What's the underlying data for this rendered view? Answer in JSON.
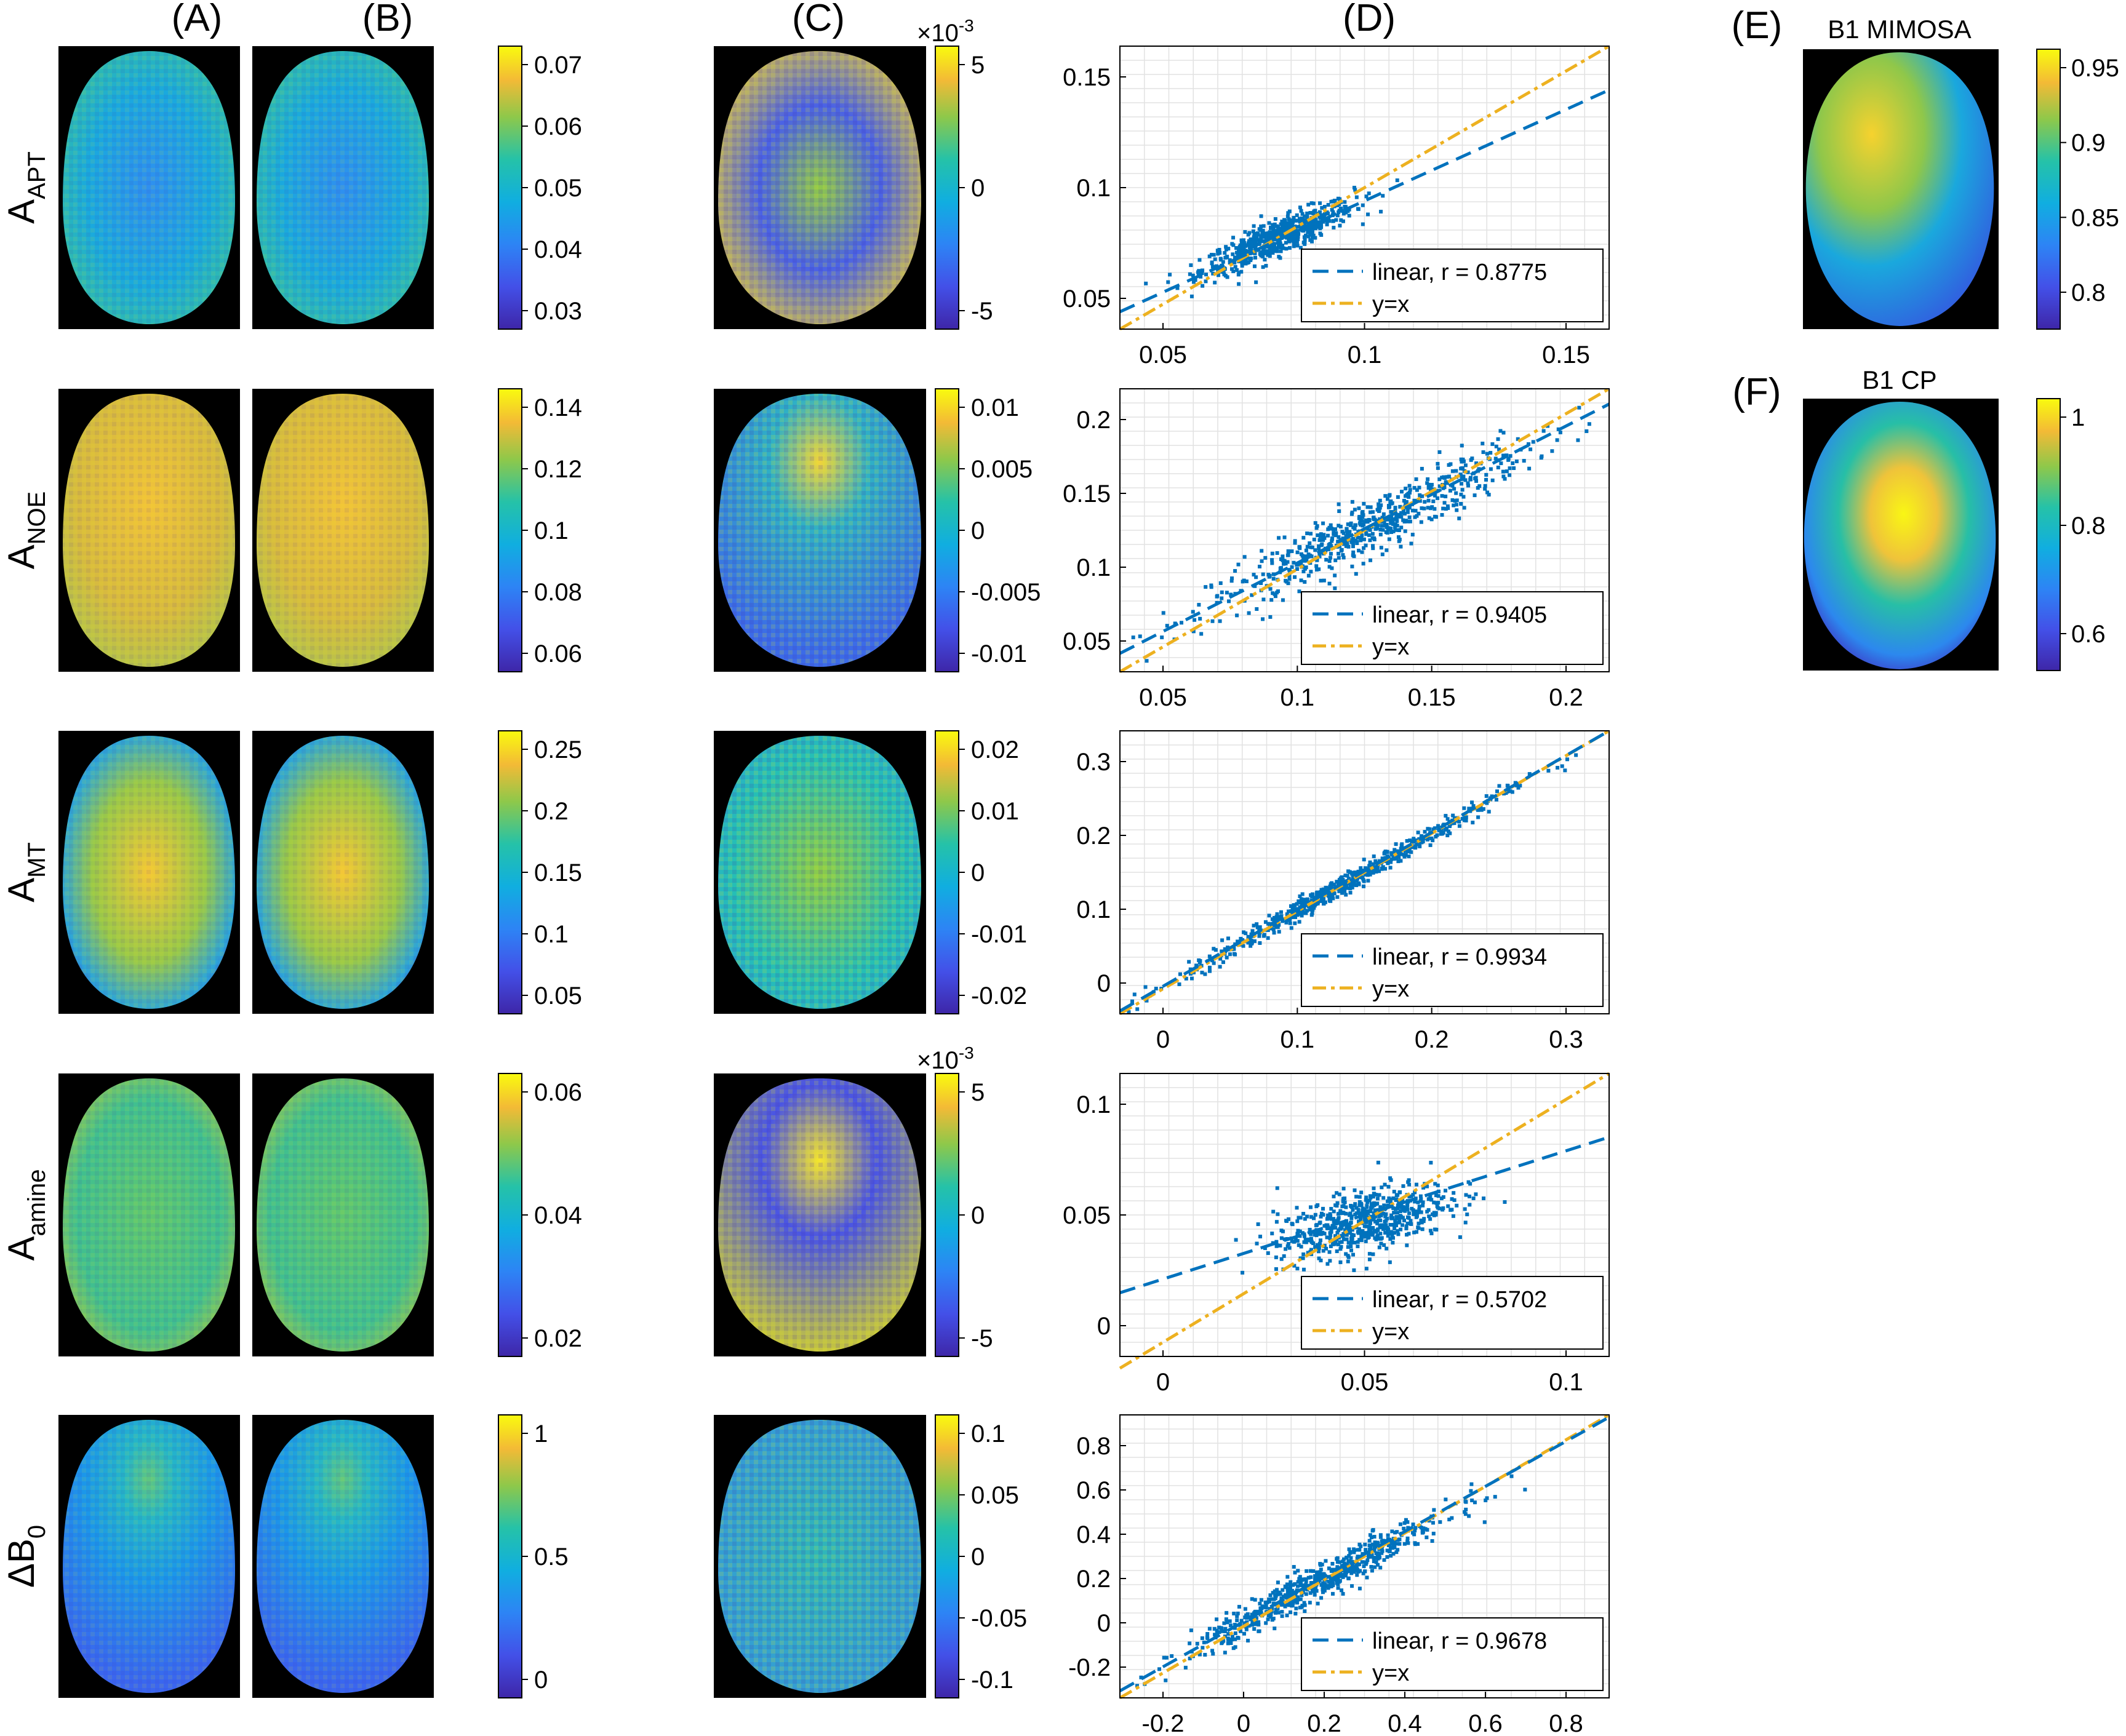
{
  "column_labels": {
    "a": "(A)",
    "b": "(B)",
    "c": "(C)",
    "d": "(D)",
    "e": "(E)",
    "f": "(F)"
  },
  "rows": [
    {
      "main": "A",
      "sub": "APT",
      "cbar_ab": [
        "0.07",
        "0.06",
        "0.05",
        "0.04",
        "0.03"
      ],
      "cbar_c": [
        "5",
        "0",
        "-5"
      ],
      "c_exponent_base": "×10",
      "c_exponent": "-3",
      "scatter": {
        "r_label": "linear, r = 0.8775",
        "yx_label": "y=x",
        "xticks": [
          "0.05",
          "0.1",
          "0.15"
        ],
        "yticks": [
          "0.15",
          "0.1",
          "0.05"
        ]
      }
    },
    {
      "main": "A",
      "sub": "NOE",
      "cbar_ab": [
        "0.14",
        "0.12",
        "0.1",
        "0.08",
        "0.06"
      ],
      "cbar_c": [
        "0.01",
        "0.005",
        "0",
        "-0.005",
        "-0.01"
      ],
      "scatter": {
        "r_label": "linear, r = 0.9405",
        "yx_label": "y=x",
        "xticks": [
          "0.05",
          "0.1",
          "0.15",
          "0.2"
        ],
        "yticks": [
          "0.2",
          "0.15",
          "0.1",
          "0.05"
        ]
      }
    },
    {
      "main": "A",
      "sub": "MT",
      "cbar_ab": [
        "0.25",
        "0.2",
        "0.15",
        "0.1",
        "0.05"
      ],
      "cbar_c": [
        "0.02",
        "0.01",
        "0",
        "-0.01",
        "-0.02"
      ],
      "scatter": {
        "r_label": "linear, r = 0.9934",
        "yx_label": "y=x",
        "xticks": [
          "0",
          "0.1",
          "0.2",
          "0.3"
        ],
        "yticks": [
          "0.3",
          "0.2",
          "0.1",
          "0"
        ]
      }
    },
    {
      "main": "A",
      "sub": "amine",
      "cbar_ab": [
        "0.06",
        "0.04",
        "0.02"
      ],
      "cbar_c": [
        "5",
        "0",
        "-5"
      ],
      "c_exponent_base": "×10",
      "c_exponent": "-3",
      "scatter": {
        "r_label": "linear, r = 0.5702",
        "yx_label": "y=x",
        "xticks": [
          "0",
          "0.05",
          "0.1"
        ],
        "yticks": [
          "0.1",
          "0.05",
          "0"
        ]
      }
    },
    {
      "main": "ΔB",
      "sub": "0",
      "cbar_ab": [
        "1",
        "0.5",
        "0"
      ],
      "cbar_c": [
        "0.1",
        "0.05",
        "0",
        "-0.05",
        "-0.1"
      ],
      "scatter": {
        "r_label": "linear, r = 0.9678",
        "yx_label": "y=x",
        "xticks": [
          "-0.2",
          "0",
          "0.2",
          "0.4",
          "0.6",
          "0.8"
        ],
        "yticks": [
          "0.8",
          "0.6",
          "0.4",
          "0.2",
          "0",
          "-0.2"
        ]
      }
    }
  ],
  "b1_mimosa": {
    "title": "B1 MIMOSA",
    "ticks": [
      "0.95",
      "0.9",
      "0.85",
      "0.8"
    ]
  },
  "b1_cp": {
    "title": "B1 CP",
    "ticks": [
      "1",
      "0.8",
      "0.6"
    ]
  },
  "colors": {
    "parula_dark": "#3e26a8",
    "parula_mid": "#1ac7c2",
    "parula_light": "#f9fb0e",
    "scatter": "#0072bd",
    "fit_line": "#0072bd",
    "identity_line": "#edb120"
  },
  "chart_data": [
    {
      "type": "scatter",
      "series": [
        {
          "name": "linear, r = 0.8775",
          "fit": {
            "x": [
              0.005,
              0.16
            ],
            "y": [
              0.0145,
              0.136
            ]
          }
        },
        {
          "name": "y=x",
          "x": [
            0.005,
            0.16
          ],
          "y": [
            0.005,
            0.16
          ]
        }
      ],
      "xlim": [
        0.005,
        0.16
      ],
      "ylim": [
        0.005,
        0.16
      ],
      "cloud": {
        "center": [
          0.055,
          0.055
        ],
        "spread": [
          0.012,
          0.01
        ]
      },
      "legend": "bottom-right",
      "grid": true
    },
    {
      "type": "scatter",
      "series": [
        {
          "name": "linear, r = 0.9405",
          "fit": {
            "x": [
              0.025,
              0.21
            ],
            "y": [
              0.037,
              0.2
            ]
          }
        },
        {
          "name": "y=x",
          "x": [
            0.025,
            0.21
          ],
          "y": [
            0.025,
            0.21
          ]
        }
      ],
      "xlim": [
        0.025,
        0.21
      ],
      "ylim": [
        0.025,
        0.21
      ],
      "cloud": {
        "center": [
          0.12,
          0.12
        ],
        "spread": [
          0.03,
          0.027
        ]
      },
      "legend": "bottom-right",
      "grid": true
    },
    {
      "type": "scatter",
      "series": [
        {
          "name": "linear, r = 0.9934",
          "fit": {
            "x": [
              -0.01,
              0.39
            ],
            "y": [
              -0.006,
              0.39
            ]
          }
        },
        {
          "name": "y=x",
          "x": [
            -0.01,
            0.39
          ],
          "y": [
            -0.01,
            0.39
          ]
        }
      ],
      "xlim": [
        -0.01,
        0.39
      ],
      "ylim": [
        -0.01,
        0.39
      ],
      "cloud": {
        "center": [
          0.17,
          0.17
        ],
        "spread": [
          0.065,
          0.064
        ]
      },
      "legend": "bottom-right",
      "grid": true
    },
    {
      "type": "scatter",
      "series": [
        {
          "name": "linear, r = 0.5702",
          "fit": {
            "x": [
              -0.02,
              0.105
            ],
            "y": [
              0.012,
              0.078
            ]
          }
        },
        {
          "name": "y=x",
          "x": [
            -0.02,
            0.105
          ],
          "y": [
            -0.02,
            0.105
          ]
        }
      ],
      "xlim": [
        -0.02,
        0.105
      ],
      "ylim": [
        -0.015,
        0.105
      ],
      "cloud": {
        "center": [
          0.042,
          0.042
        ],
        "spread": [
          0.011,
          0.008
        ]
      },
      "legend": "bottom-right",
      "grid": true
    },
    {
      "type": "scatter",
      "series": [
        {
          "name": "linear, r = 0.9678",
          "fit": {
            "x": [
              -0.32,
              0.9
            ],
            "y": [
              -0.29,
              0.89
            ]
          }
        },
        {
          "name": "y=x",
          "x": [
            -0.32,
            0.9
          ],
          "y": [
            -0.32,
            0.9
          ]
        }
      ],
      "xlim": [
        -0.32,
        0.9
      ],
      "ylim": [
        -0.32,
        0.9
      ],
      "cloud": {
        "center": [
          0.18,
          0.18
        ],
        "spread": [
          0.16,
          0.15
        ]
      },
      "legend": "bottom-right",
      "grid": true
    }
  ]
}
